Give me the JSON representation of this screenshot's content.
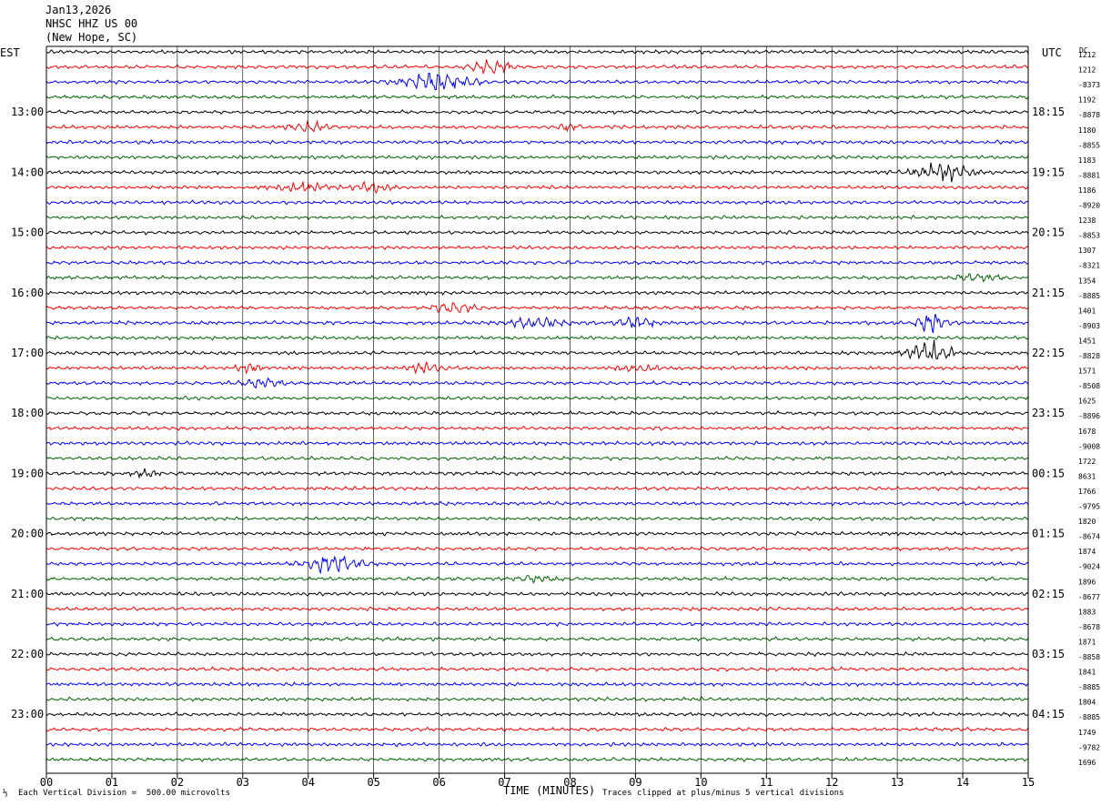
{
  "header": {
    "date": "Jan13,2026",
    "station": "NHSC HHZ US 00",
    "location": "(New Hope, SC)"
  },
  "left_tz": "EST",
  "right_tz": "UTC",
  "dc_label": "DC",
  "footer": {
    "scale_note": "Each Vertical Division =  500.00 microvolts",
    "x_title": "TIME (MINUTES)",
    "clip_note": "Traces clipped at plus/minus 5 vertical divisions"
  },
  "chart_data": {
    "type": "line",
    "title": "",
    "xlabel": "TIME (MINUTES)",
    "x_ticks": [
      "00",
      "01",
      "02",
      "03",
      "04",
      "05",
      "06",
      "07",
      "08",
      "09",
      "10",
      "11",
      "12",
      "13",
      "14",
      "15"
    ],
    "xlim": [
      0,
      15
    ],
    "traces_per_hour": 4,
    "trace_colors": [
      "#000000",
      "#ff0000",
      "#0000ff",
      "#006400"
    ],
    "left_hour_labels": [
      "13:00",
      "14:00",
      "15:00",
      "16:00",
      "17:00",
      "18:00",
      "19:00",
      "20:00",
      "21:00",
      "22:00",
      "23:00"
    ],
    "right_hour_labels": [
      "18:15",
      "19:15",
      "20:15",
      "21:15",
      "22:15",
      "23:15",
      "00:15",
      "01:15",
      "02:15",
      "03:15",
      "04:15"
    ],
    "dc_offsets": [
      "1212",
      "1212",
      "-8373",
      "1192",
      "-8878",
      "1180",
      "-8855",
      "1183",
      "-8881",
      "1186",
      "-8920",
      "1238",
      "-8853",
      "1307",
      "-8321",
      "1354",
      "-8885",
      "1401",
      "-8903",
      "1451",
      "-8828",
      "1571",
      "-8508",
      "1625",
      "-8896",
      "1678",
      "-9008",
      "1722",
      "8631",
      "1766",
      "-9795",
      "1820",
      "-8674",
      "1874",
      "-9024",
      "1896",
      "-8677",
      "1883",
      "-8678",
      "1871",
      "-8858",
      "1841",
      "-8885",
      "1804",
      "-8885",
      "1749",
      "-9782",
      "1696"
    ],
    "events": [
      {
        "trace": 1,
        "minute": 6.8,
        "amp": 2.2,
        "width": 0.3
      },
      {
        "trace": 2,
        "minute": 6.0,
        "amp": 3.5,
        "width": 0.5
      },
      {
        "trace": 5,
        "minute": 4.0,
        "amp": 1.6,
        "width": 0.3
      },
      {
        "trace": 5,
        "minute": 8.0,
        "amp": 1.4,
        "width": 0.2
      },
      {
        "trace": 8,
        "minute": 13.7,
        "amp": 3.2,
        "width": 0.4
      },
      {
        "trace": 9,
        "minute": 3.9,
        "amp": 1.5,
        "width": 0.4
      },
      {
        "trace": 9,
        "minute": 5.0,
        "amp": 1.4,
        "width": 0.3
      },
      {
        "trace": 15,
        "minute": 14.2,
        "amp": 1.6,
        "width": 0.3
      },
      {
        "trace": 17,
        "minute": 6.2,
        "amp": 1.8,
        "width": 0.3
      },
      {
        "trace": 18,
        "minute": 7.5,
        "amp": 1.7,
        "width": 0.4
      },
      {
        "trace": 18,
        "minute": 9.0,
        "amp": 1.7,
        "width": 0.3
      },
      {
        "trace": 18,
        "minute": 13.5,
        "amp": 3.5,
        "width": 0.2
      },
      {
        "trace": 20,
        "minute": 13.5,
        "amp": 3.8,
        "width": 0.3
      },
      {
        "trace": 21,
        "minute": 3.1,
        "amp": 1.4,
        "width": 0.2
      },
      {
        "trace": 21,
        "minute": 5.8,
        "amp": 1.4,
        "width": 0.3
      },
      {
        "trace": 21,
        "minute": 9.0,
        "amp": 1.4,
        "width": 0.3
      },
      {
        "trace": 22,
        "minute": 3.3,
        "amp": 1.5,
        "width": 0.3
      },
      {
        "trace": 28,
        "minute": 1.5,
        "amp": 1.2,
        "width": 0.2
      },
      {
        "trace": 34,
        "minute": 4.4,
        "amp": 3.2,
        "width": 0.4
      },
      {
        "trace": 35,
        "minute": 7.5,
        "amp": 1.1,
        "width": 0.3
      }
    ]
  }
}
